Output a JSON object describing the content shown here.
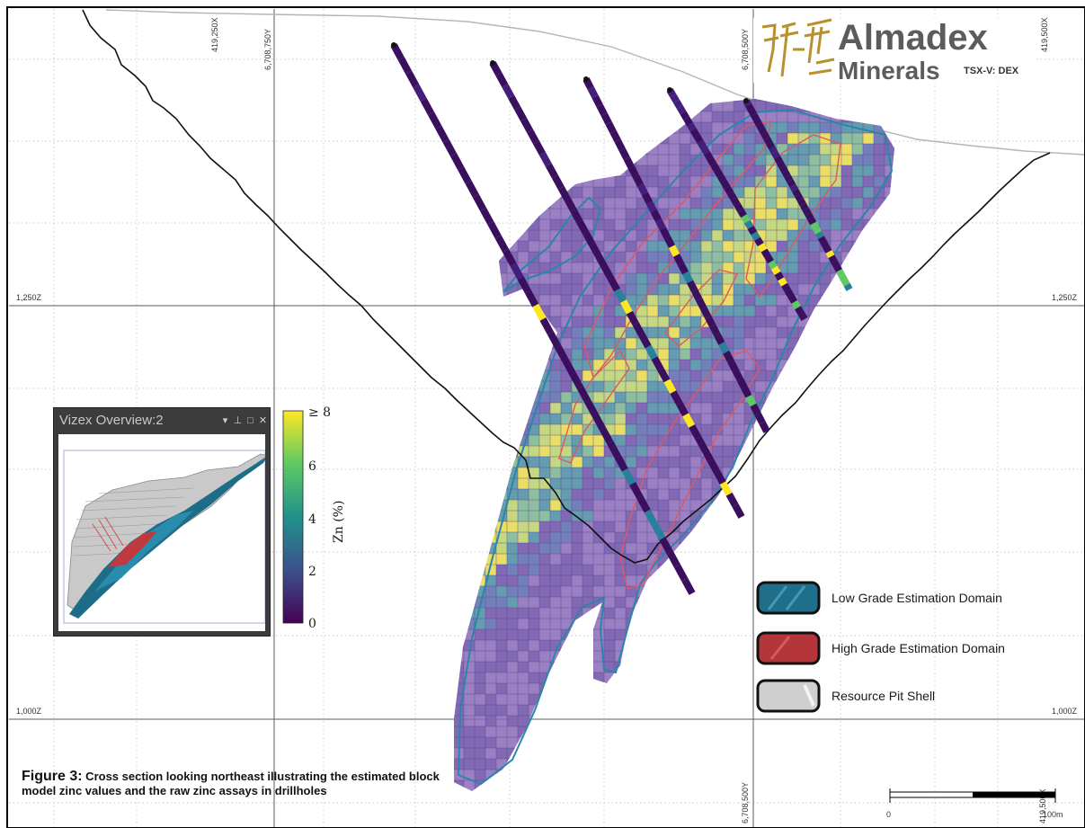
{
  "section": {
    "easting_top": [
      "419,250X",
      "419,500X"
    ],
    "northing_top": [
      "6,708,750Y",
      "6,708,500Y"
    ],
    "northing_bottom": [
      "6,708,500Y"
    ],
    "easting_bottom": [
      "419,500X"
    ],
    "elevations": [
      "1,250Z",
      "1,000Z"
    ],
    "scale_bar": {
      "start_label": "0",
      "end_label": "100m"
    }
  },
  "logo": {
    "name": "Almadex",
    "subtitle": "Minerals",
    "ticker": "TSX-V: DEX"
  },
  "colorbar": {
    "label": "Zn (%)",
    "ticks": [
      "≥ 8",
      "6",
      "4",
      "2",
      "0"
    ],
    "min": 0,
    "max": 8
  },
  "legend": [
    {
      "label": "Low Grade Estimation Domain",
      "color": "#1f6f8b"
    },
    {
      "label": "High Grade Estimation Domain",
      "color": "#b5363a"
    },
    {
      "label": "Resource Pit Shell",
      "color": "#cfcfcf"
    }
  ],
  "inset": {
    "title": "Vizex Overview:2"
  },
  "caption": {
    "lead": "Figure 3:",
    "text": " Cross section looking northeast illustrating the estimated block model zinc values and the raw zinc assays in drillholes"
  }
}
